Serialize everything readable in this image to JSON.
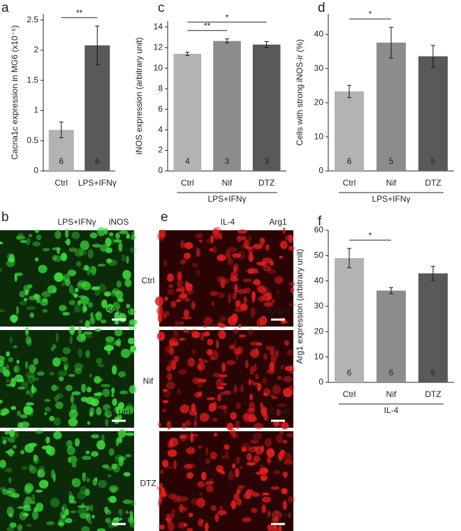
{
  "chart_data": [
    {
      "type": "bar",
      "panel": "a",
      "ylabel": "Cacna1c expression in MG6 (x10⁻⁵)",
      "categories": [
        "Ctrl",
        "LPS+IFNγ"
      ],
      "values": [
        0.68,
        2.08
      ],
      "errors": [
        0.13,
        0.32
      ],
      "n": [
        6,
        6
      ],
      "colors": [
        "#b3b3b3",
        "#595959"
      ],
      "ylim": [
        0,
        2.6
      ],
      "yticks": [
        0,
        0.5,
        1,
        1.5,
        2,
        2.5
      ],
      "comparisons": [
        {
          "from": 0,
          "to": 1,
          "label": "**"
        }
      ]
    },
    {
      "type": "bar",
      "panel": "c",
      "ylabel": "iNOS expression (arbitrary unit)",
      "categories": [
        "Ctrl",
        "Nif",
        "DTZ"
      ],
      "values": [
        11.4,
        12.65,
        12.3
      ],
      "errors": [
        0.15,
        0.2,
        0.3
      ],
      "n": [
        4,
        3,
        3
      ],
      "colors": [
        "#b3b3b3",
        "#8c8c8c",
        "#595959"
      ],
      "ylim": [
        0,
        14.6
      ],
      "yticks": [
        0,
        2,
        4,
        6,
        8,
        10,
        12,
        14
      ],
      "comparisons": [
        {
          "from": 0,
          "to": 1,
          "label": "**"
        },
        {
          "from": 0,
          "to": 2,
          "label": "*"
        }
      ],
      "group_label": "LPS+IFNγ"
    },
    {
      "type": "bar",
      "panel": "d",
      "ylabel": "Cells with strong iNOS-ir (%)",
      "categories": [
        "Ctrl",
        "Nif",
        "DTZ"
      ],
      "values": [
        23.3,
        37.6,
        33.6
      ],
      "errors": [
        1.8,
        4.5,
        3.2
      ],
      "n": [
        6,
        5,
        5
      ],
      "colors": [
        "#b3b3b3",
        "#8c8c8c",
        "#595959"
      ],
      "ylim": [
        0,
        46
      ],
      "yticks": [
        0,
        10,
        20,
        30,
        40
      ],
      "comparisons": [
        {
          "from": 0,
          "to": 1,
          "label": "*"
        }
      ],
      "group_label": "LPS+IFNγ"
    },
    {
      "type": "bar",
      "panel": "f",
      "ylabel": "Arg1 expression (arbitrary unit)",
      "categories": [
        "Ctrl",
        "Nif",
        "DTZ"
      ],
      "values": [
        49,
        36.2,
        43
      ],
      "errors": [
        3.8,
        1.2,
        2.8
      ],
      "n": [
        6,
        6,
        6
      ],
      "colors": [
        "#b3b3b3",
        "#8c8c8c",
        "#595959"
      ],
      "ylim": [
        0,
        60
      ],
      "yticks": [
        0,
        10,
        20,
        30,
        40,
        50,
        60
      ],
      "comparisons": [
        {
          "from": 0,
          "to": 1,
          "label": "*"
        }
      ],
      "group_label": "IL-4"
    }
  ],
  "image_panels": [
    {
      "panel": "b",
      "condition": "LPS+IFNγ",
      "marker": "iNOS",
      "marker_color": "#22b022",
      "rows": [
        {
          "label": "Ctrl",
          "scale": "50 μm"
        },
        {
          "label": "Nif",
          "scale": "50 μm"
        },
        {
          "label": "DTZ",
          "scale": "50 μm"
        }
      ]
    },
    {
      "panel": "e",
      "condition": "IL-4",
      "marker": "Arg1",
      "marker_color": "#e02020",
      "rows": [
        {
          "scale": "50 μm"
        },
        {
          "scale": "50 μm"
        },
        {
          "scale": "50 μm"
        }
      ]
    }
  ]
}
